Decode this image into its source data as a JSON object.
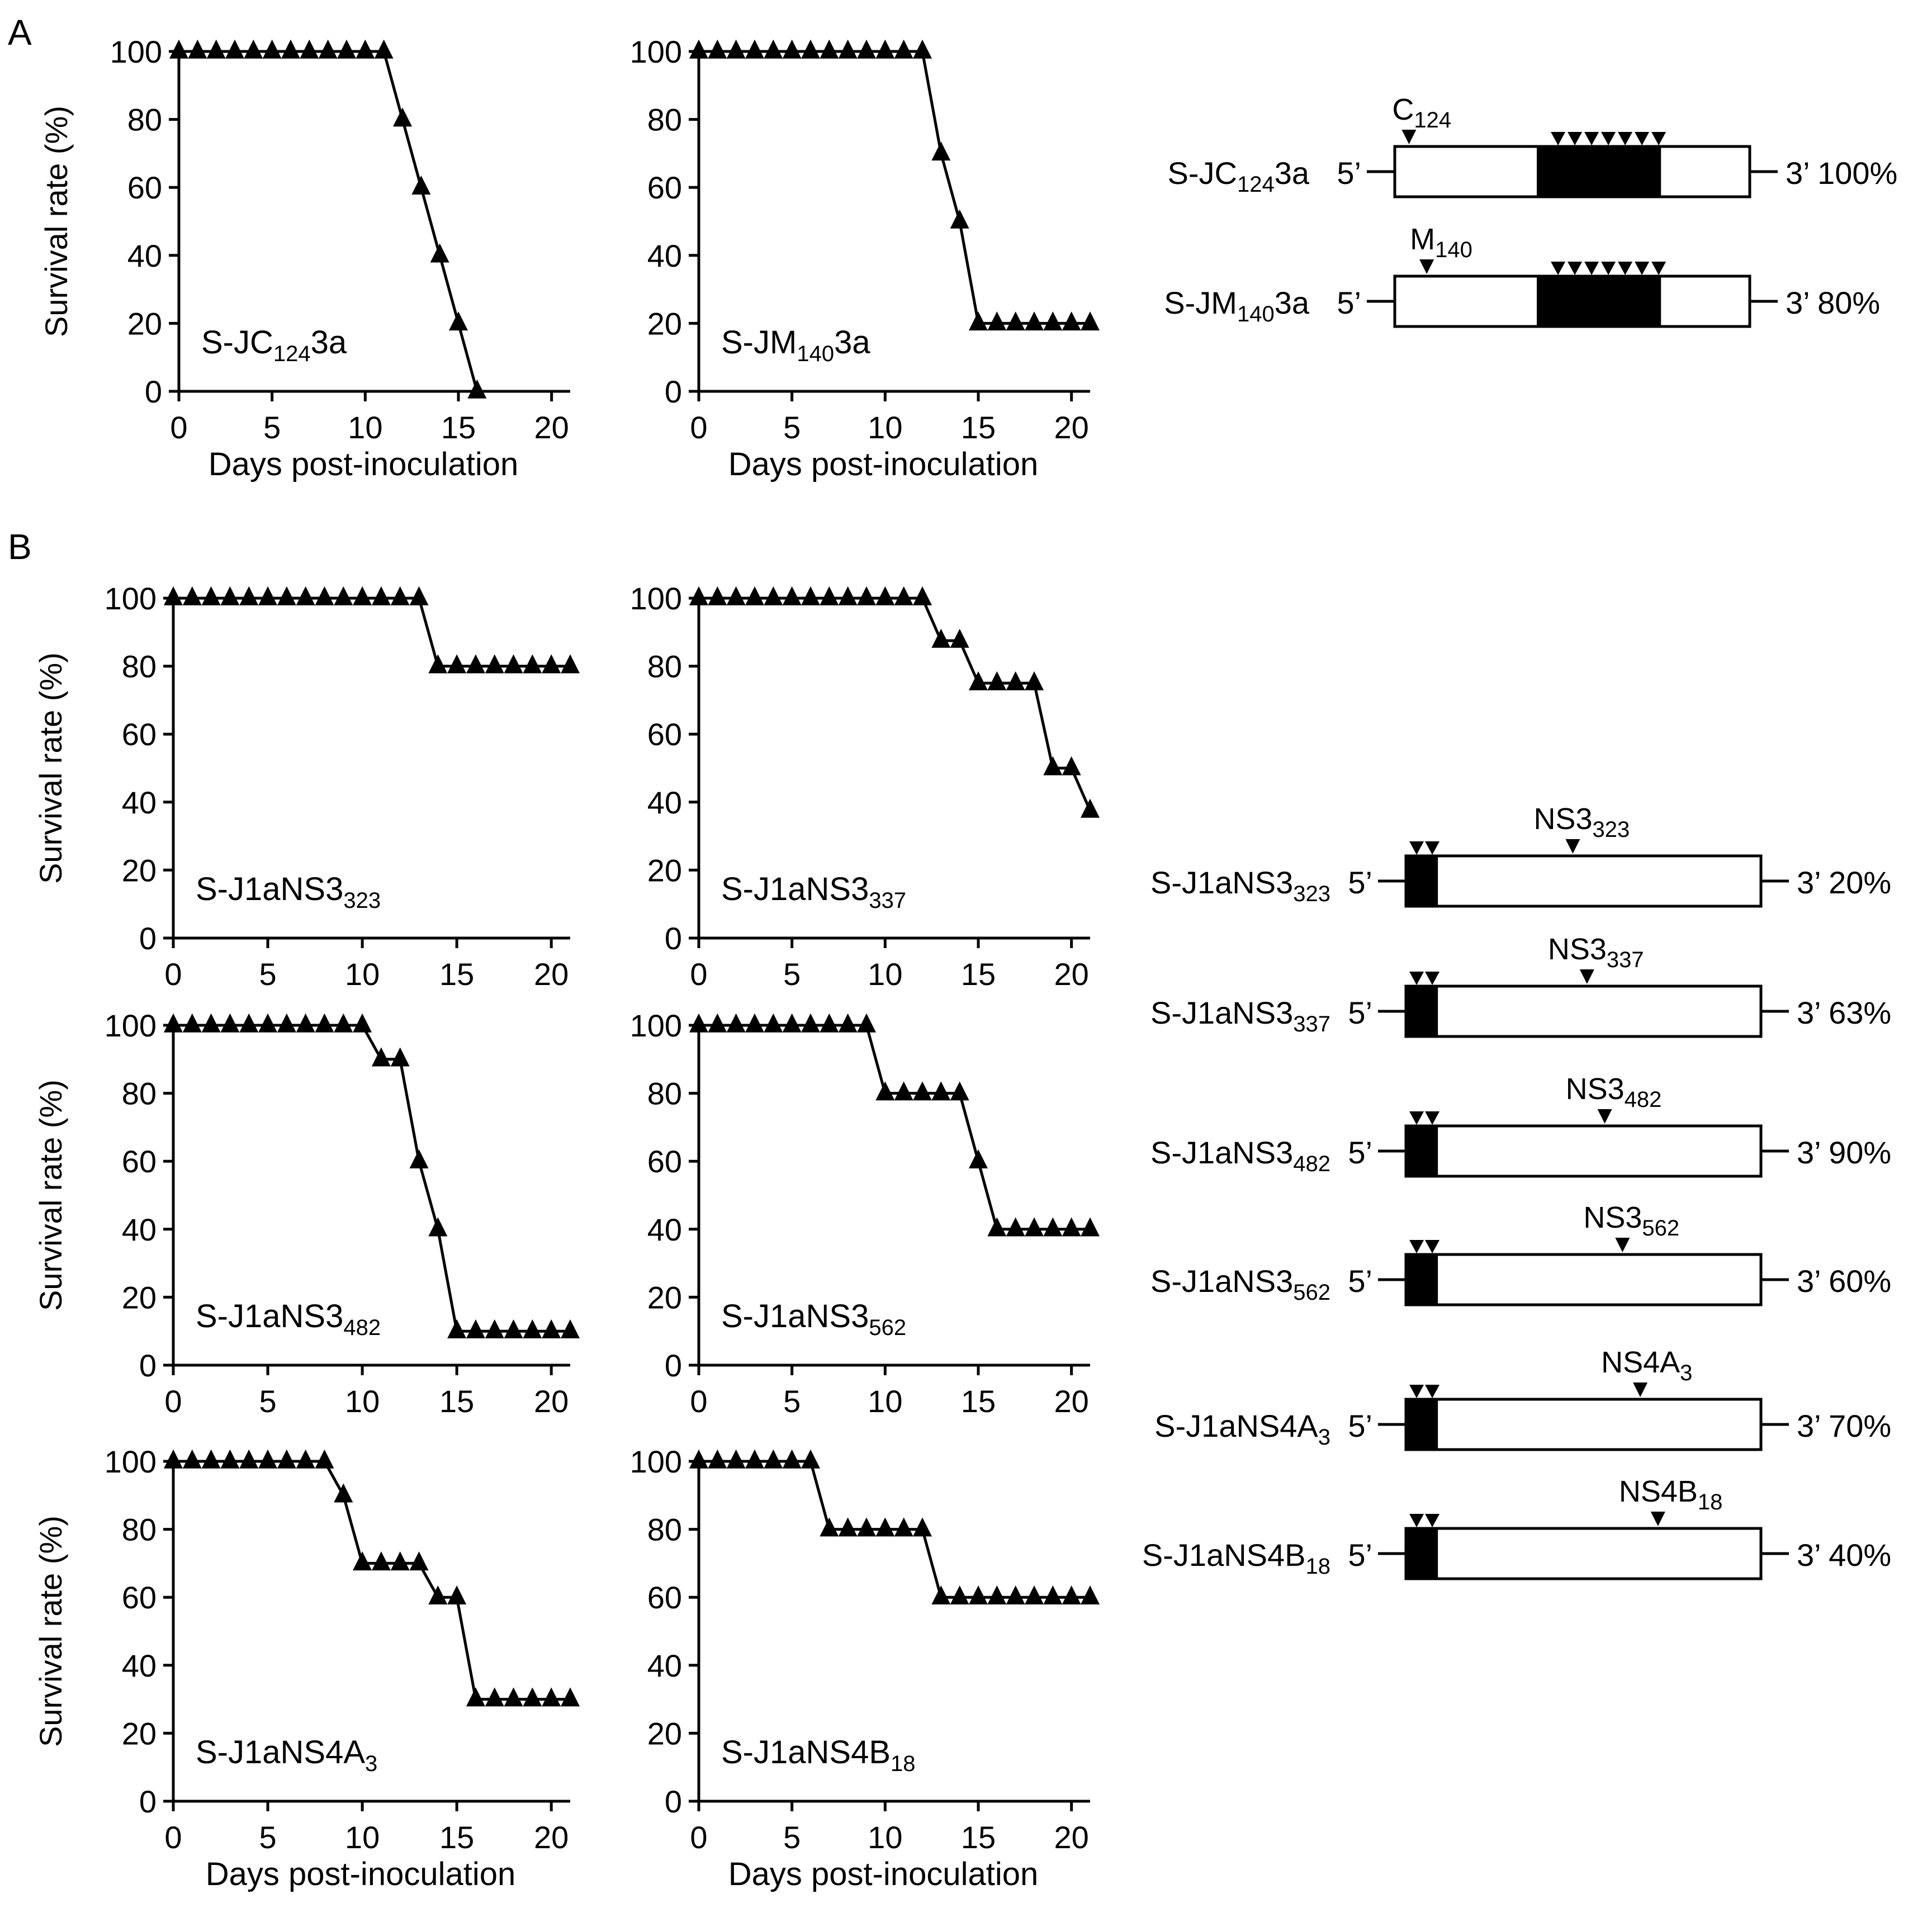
{
  "panel_labels": {
    "a": "A",
    "b": "B"
  },
  "common": {
    "ylabel": "Survival rate (%)",
    "xlabel": "Days post-inoculation",
    "xticks": [
      "0",
      "5",
      "10",
      "15",
      "20"
    ],
    "yticks": [
      "0",
      "20",
      "40",
      "60",
      "80",
      "100"
    ]
  },
  "chart_data": [
    {
      "type": "line",
      "id": "a1",
      "title": "S-JC",
      "title_sub": "124",
      "title_tail": "3a",
      "xlabel": "Days post-inoculation",
      "ylabel": "Survival rate (%)",
      "xlim": [
        0,
        21
      ],
      "ylim": [
        0,
        100
      ],
      "x": [
        0,
        1,
        2,
        3,
        4,
        5,
        6,
        7,
        8,
        9,
        10,
        11,
        12,
        13,
        14,
        15,
        16
      ],
      "y": [
        100,
        100,
        100,
        100,
        100,
        100,
        100,
        100,
        100,
        100,
        100,
        100,
        80,
        60,
        40,
        20,
        0
      ]
    },
    {
      "type": "line",
      "id": "a2",
      "title": "S-JM",
      "title_sub": "140",
      "title_tail": "3a",
      "xlabel": "Days post-inoculation",
      "ylabel": "",
      "xlim": [
        0,
        21
      ],
      "ylim": [
        0,
        100
      ],
      "x": [
        0,
        1,
        2,
        3,
        4,
        5,
        6,
        7,
        8,
        9,
        10,
        11,
        12,
        13,
        14,
        15,
        16,
        17,
        18,
        19,
        20,
        21
      ],
      "y": [
        100,
        100,
        100,
        100,
        100,
        100,
        100,
        100,
        100,
        100,
        100,
        100,
        100,
        70,
        50,
        20,
        20,
        20,
        20,
        20,
        20,
        20
      ]
    },
    {
      "type": "line",
      "id": "b1",
      "title": "S-J1aNS3",
      "title_sub": "323",
      "title_tail": "",
      "xlabel": "",
      "ylabel": "Survival rate (%)",
      "xlim": [
        0,
        21
      ],
      "ylim": [
        0,
        100
      ],
      "x": [
        0,
        1,
        2,
        3,
        4,
        5,
        6,
        7,
        8,
        9,
        10,
        11,
        12,
        13,
        14,
        15,
        16,
        17,
        18,
        19,
        20,
        21
      ],
      "y": [
        100,
        100,
        100,
        100,
        100,
        100,
        100,
        100,
        100,
        100,
        100,
        100,
        100,
        100,
        80,
        80,
        80,
        80,
        80,
        80,
        80,
        80
      ]
    },
    {
      "type": "line",
      "id": "b2",
      "title": "S-J1aNS3",
      "title_sub": "337",
      "title_tail": "",
      "xlabel": "",
      "ylabel": "",
      "xlim": [
        0,
        21
      ],
      "ylim": [
        0,
        100
      ],
      "x": [
        0,
        1,
        2,
        3,
        4,
        5,
        6,
        7,
        8,
        9,
        10,
        11,
        12,
        13,
        14,
        15,
        16,
        17,
        18,
        19,
        20,
        21
      ],
      "y": [
        100,
        100,
        100,
        100,
        100,
        100,
        100,
        100,
        100,
        100,
        100,
        100,
        100,
        87.5,
        87.5,
        75,
        75,
        75,
        75,
        50,
        50,
        37.5
      ]
    },
    {
      "type": "line",
      "id": "b3",
      "title": "S-J1aNS3",
      "title_sub": "482",
      "title_tail": "",
      "xlabel": "",
      "ylabel": "Survival rate (%)",
      "xlim": [
        0,
        21
      ],
      "ylim": [
        0,
        100
      ],
      "x": [
        0,
        1,
        2,
        3,
        4,
        5,
        6,
        7,
        8,
        9,
        10,
        11,
        12,
        13,
        14,
        15,
        16,
        17,
        18,
        19,
        20,
        21
      ],
      "y": [
        100,
        100,
        100,
        100,
        100,
        100,
        100,
        100,
        100,
        100,
        100,
        90,
        90,
        60,
        40,
        10,
        10,
        10,
        10,
        10,
        10,
        10
      ]
    },
    {
      "type": "line",
      "id": "b4",
      "title": "S-J1aNS3",
      "title_sub": "562",
      "title_tail": "",
      "xlabel": "",
      "ylabel": "",
      "xlim": [
        0,
        21
      ],
      "ylim": [
        0,
        100
      ],
      "x": [
        0,
        1,
        2,
        3,
        4,
        5,
        6,
        7,
        8,
        9,
        10,
        11,
        12,
        13,
        14,
        15,
        16,
        17,
        18,
        19,
        20,
        21
      ],
      "y": [
        100,
        100,
        100,
        100,
        100,
        100,
        100,
        100,
        100,
        100,
        80,
        80,
        80,
        80,
        80,
        60,
        40,
        40,
        40,
        40,
        40,
        40
      ]
    },
    {
      "type": "line",
      "id": "b5",
      "title": "S-J1aNS4A",
      "title_sub": "3",
      "title_tail": "",
      "xlabel": "Days post-inoculation",
      "ylabel": "Survival rate (%)",
      "xlim": [
        0,
        21
      ],
      "ylim": [
        0,
        100
      ],
      "x": [
        0,
        1,
        2,
        3,
        4,
        5,
        6,
        7,
        8,
        9,
        10,
        11,
        12,
        13,
        14,
        15,
        16,
        17,
        18,
        19,
        20,
        21
      ],
      "y": [
        100,
        100,
        100,
        100,
        100,
        100,
        100,
        100,
        100,
        90,
        70,
        70,
        70,
        70,
        60,
        60,
        30,
        30,
        30,
        30,
        30,
        30
      ]
    },
    {
      "type": "line",
      "id": "b6",
      "title": "S-J1aNS4B",
      "title_sub": "18",
      "title_tail": "",
      "xlabel": "Days post-inoculation",
      "ylabel": "",
      "xlim": [
        0,
        21
      ],
      "ylim": [
        0,
        100
      ],
      "x": [
        0,
        1,
        2,
        3,
        4,
        5,
        6,
        7,
        8,
        9,
        10,
        11,
        12,
        13,
        14,
        15,
        16,
        17,
        18,
        19,
        20,
        21
      ],
      "y": [
        100,
        100,
        100,
        100,
        100,
        100,
        100,
        80,
        80,
        80,
        80,
        80,
        80,
        60,
        60,
        60,
        60,
        60,
        60,
        60,
        60,
        60
      ]
    }
  ],
  "constructs_a": [
    {
      "id": "ca1",
      "name": "S-JC",
      "sub": "124",
      "tail": "3a",
      "marker": "C",
      "marker_sub": "124",
      "percent": "100%",
      "marker_pos": 0.04
    },
    {
      "id": "ca2",
      "name": "S-JM",
      "sub": "140",
      "tail": "3a",
      "marker": "M",
      "marker_sub": "140",
      "percent": "80%",
      "marker_pos": 0.09
    }
  ],
  "constructs_b": [
    {
      "id": "cb1",
      "name": "S-J1aNS3",
      "sub": "323",
      "marker": "NS3",
      "marker_sub": "323",
      "percent": "20%",
      "marker_pos": 0.47
    },
    {
      "id": "cb2",
      "name": "S-J1aNS3",
      "sub": "337",
      "marker": "NS3",
      "marker_sub": "337",
      "percent": "63%",
      "marker_pos": 0.51
    },
    {
      "id": "cb3",
      "name": "S-J1aNS3",
      "sub": "482",
      "marker": "NS3",
      "marker_sub": "482",
      "percent": "90%",
      "marker_pos": 0.56
    },
    {
      "id": "cb4",
      "name": "S-J1aNS3",
      "sub": "562",
      "marker": "NS3",
      "marker_sub": "562",
      "percent": "60%",
      "marker_pos": 0.61
    },
    {
      "id": "cb5",
      "name": "S-J1aNS4A",
      "sub": "3",
      "marker": "NS4A",
      "marker_sub": "3",
      "percent": "70%",
      "marker_pos": 0.66
    },
    {
      "id": "cb6",
      "name": "S-J1aNS4B",
      "sub": "18",
      "marker": "NS4B",
      "marker_sub": "18",
      "percent": "40%",
      "marker_pos": 0.71
    }
  ],
  "strand": {
    "five": "5’",
    "three": "3’"
  }
}
